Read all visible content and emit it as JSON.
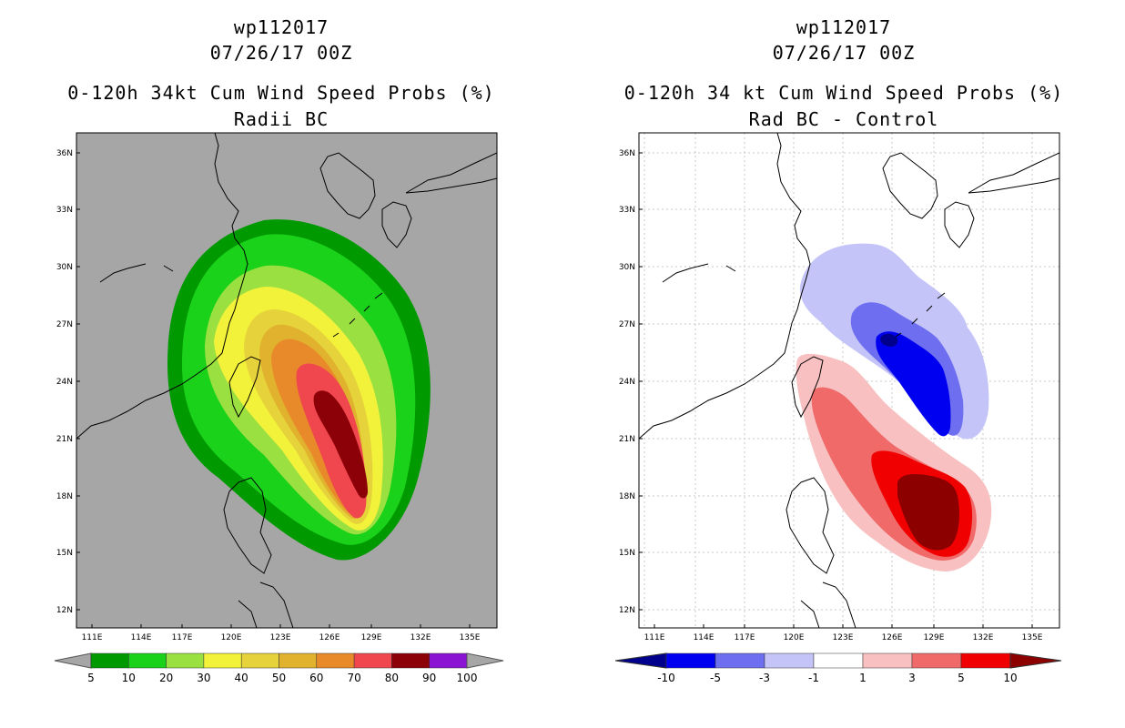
{
  "left_panel": {
    "storm_id": "wp112017",
    "datetime": "07/26/17 00Z",
    "product": "0-120h 34kt Cum Wind Speed Probs (%)",
    "subtitle": "Radii BC",
    "background_color": "#a6a6a6",
    "colorbar": {
      "labels": [
        "5",
        "10",
        "20",
        "30",
        "40",
        "50",
        "60",
        "70",
        "80",
        "90",
        "100"
      ],
      "colors": [
        "#009a00",
        "#1bd21b",
        "#9ae040",
        "#f2f23a",
        "#e6d23a",
        "#e0b22e",
        "#e98a2a",
        "#f0464e",
        "#8c0008",
        "#8a14d2"
      ]
    }
  },
  "right_panel": {
    "storm_id": "wp112017",
    "datetime": "07/26/17 00Z",
    "product": "0-120h 34 kt Cum Wind Speed Probs (%)",
    "subtitle": "Rad BC - Control",
    "background_color": "#ffffff",
    "colorbar": {
      "labels": [
        "-10",
        "-5",
        "-3",
        "-1",
        "1",
        "3",
        "5",
        "10"
      ],
      "colors": [
        "#00008c",
        "#0000f0",
        "#6e6ef0",
        "#c4c4f8",
        "#ffffff",
        "#f8c0c0",
        "#f06a6a",
        "#f00000",
        "#8c0000"
      ]
    }
  },
  "axes": {
    "lon_labels": [
      "111E",
      "114E",
      "117E",
      "120E",
      "123E",
      "126E",
      "129E",
      "132E",
      "135E"
    ],
    "lat_labels": [
      "36N",
      "33N",
      "30N",
      "27N",
      "24N",
      "21N",
      "18N",
      "15N",
      "12N"
    ]
  }
}
